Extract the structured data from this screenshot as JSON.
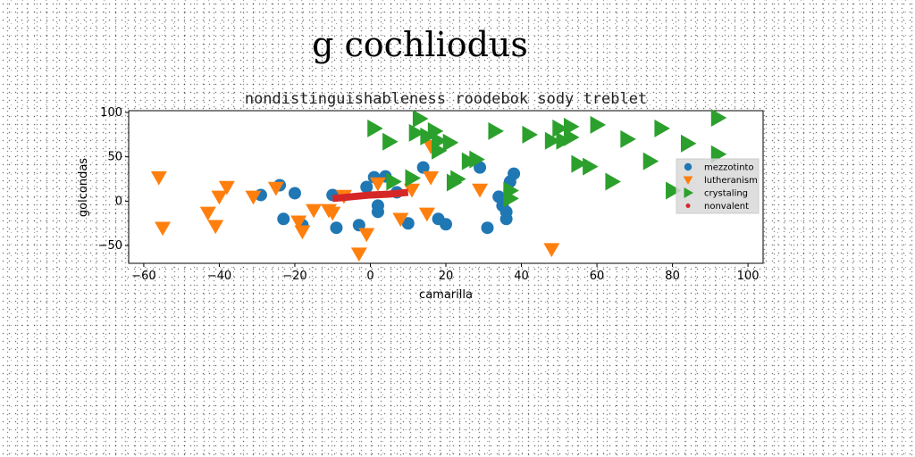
{
  "page": {
    "title": "g cochliodus"
  },
  "chart_data": {
    "type": "scatter",
    "subtitle": "nondistinguishableness roodebok sody treblet",
    "xlabel": "camarilla",
    "ylabel": "golcondas",
    "xlim": [
      -64,
      104
    ],
    "ylim": [
      -70,
      102
    ],
    "xticks": [
      -60,
      -40,
      -20,
      0,
      20,
      40,
      60,
      80,
      100
    ],
    "yticks": [
      -50,
      0,
      50,
      100
    ],
    "grid": false,
    "legend_position": "right",
    "series": [
      {
        "name": "mezzotinto",
        "marker": "circle",
        "color": "#1f77b4",
        "points": [
          [
            -29,
            7
          ],
          [
            -24,
            18
          ],
          [
            -23,
            -20
          ],
          [
            -20,
            9
          ],
          [
            -18,
            -27
          ],
          [
            -10,
            7
          ],
          [
            -9,
            -30
          ],
          [
            -3,
            -27
          ],
          [
            -1,
            16
          ],
          [
            1,
            27
          ],
          [
            2,
            -5
          ],
          [
            2,
            -12
          ],
          [
            4,
            28
          ],
          [
            7,
            10
          ],
          [
            10,
            -25
          ],
          [
            14,
            38
          ],
          [
            18,
            -20
          ],
          [
            20,
            -26
          ],
          [
            29,
            38
          ],
          [
            31,
            -30
          ],
          [
            34,
            5
          ],
          [
            35,
            -5
          ],
          [
            36,
            -12
          ],
          [
            36,
            -20
          ],
          [
            37,
            22
          ],
          [
            38,
            31
          ]
        ]
      },
      {
        "name": "lutheranism",
        "marker": "triangle-down",
        "color": "#ff7f0e",
        "points": [
          [
            -56,
            27
          ],
          [
            -55,
            -30
          ],
          [
            -43,
            -13
          ],
          [
            -41,
            -28
          ],
          [
            -40,
            5
          ],
          [
            -38,
            16
          ],
          [
            -31,
            5
          ],
          [
            -25,
            15
          ],
          [
            -19,
            -23
          ],
          [
            -18,
            -34
          ],
          [
            -15,
            -10
          ],
          [
            -11,
            -10
          ],
          [
            -10,
            -13
          ],
          [
            -7,
            6
          ],
          [
            -3,
            -59
          ],
          [
            -1,
            -37
          ],
          [
            2,
            20
          ],
          [
            8,
            -20
          ],
          [
            11,
            13
          ],
          [
            15,
            -14
          ],
          [
            16,
            62
          ],
          [
            16,
            27
          ],
          [
            29,
            13
          ],
          [
            48,
            -54
          ]
        ]
      },
      {
        "name": "crystaling",
        "marker": "triangle-right",
        "color": "#2ca02c",
        "points": [
          [
            1,
            82
          ],
          [
            5,
            67
          ],
          [
            6,
            22
          ],
          [
            11,
            26
          ],
          [
            12,
            77
          ],
          [
            13,
            93
          ],
          [
            15,
            73
          ],
          [
            17,
            79
          ],
          [
            18,
            68
          ],
          [
            18,
            57
          ],
          [
            21,
            66
          ],
          [
            22,
            21
          ],
          [
            23,
            25
          ],
          [
            26,
            45
          ],
          [
            28,
            47
          ],
          [
            33,
            79
          ],
          [
            37,
            12
          ],
          [
            37,
            3
          ],
          [
            42,
            75
          ],
          [
            48,
            68
          ],
          [
            50,
            82
          ],
          [
            51,
            68
          ],
          [
            53,
            84
          ],
          [
            53,
            72
          ],
          [
            55,
            42
          ],
          [
            58,
            39
          ],
          [
            60,
            86
          ],
          [
            64,
            22
          ],
          [
            68,
            70
          ],
          [
            74,
            45
          ],
          [
            77,
            82
          ],
          [
            80,
            12
          ],
          [
            84,
            65
          ],
          [
            92,
            94
          ],
          [
            92,
            53
          ]
        ]
      },
      {
        "name": "nonvalent",
        "marker": "line",
        "color": "#d62728",
        "points": [
          [
            -10,
            3
          ],
          [
            -5,
            5
          ],
          [
            0,
            7
          ],
          [
            5,
            8
          ],
          [
            10,
            10
          ]
        ]
      }
    ]
  }
}
